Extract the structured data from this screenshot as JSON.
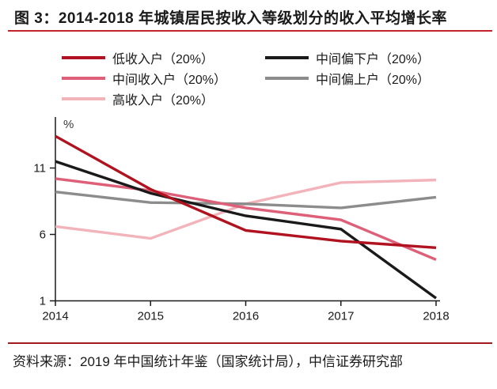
{
  "header": {
    "title": "图 3：2014-2018 年城镇居民按收入等级划分的收入平均增长率"
  },
  "footer": {
    "source": "资料来源：2019 年中国统计年鉴（国家统计局），中信证券研究部"
  },
  "colors": {
    "title_rule": "#c4232b",
    "footer_rule": "#a01a20",
    "axis": "#1a1a1a",
    "unit_label_text": "#3a3a3a"
  },
  "chart_data": {
    "type": "line",
    "title": "2014-2018 年城镇居民按收入等级划分的收入平均增长率",
    "xlabel": "",
    "ylabel": "%",
    "unit_label": "%",
    "x": [
      2014,
      2015,
      2016,
      2017,
      2018
    ],
    "x_labels": [
      "2014",
      "2015",
      "2016",
      "2017",
      "2018"
    ],
    "y_ticks": [
      1,
      6,
      11
    ],
    "ylim": [
      1,
      14.8
    ],
    "grid": false,
    "legend_position": "top",
    "series": [
      {
        "name": "低收入户（20%）",
        "color": "#b0121f",
        "legend_column": 0,
        "values": [
          13.4,
          9.4,
          6.3,
          5.5,
          5.0
        ]
      },
      {
        "name": "中间收入户（20%）",
        "color": "#dd6078",
        "legend_column": 0,
        "values": [
          10.2,
          9.3,
          8.0,
          7.1,
          4.1
        ]
      },
      {
        "name": "高收入户（20%）",
        "color": "#f2b3bb",
        "legend_column": 0,
        "values": [
          6.6,
          5.7,
          8.3,
          9.9,
          10.1
        ]
      },
      {
        "name": "中间偏下户（20%）",
        "color": "#1a1a1a",
        "legend_column": 1,
        "values": [
          11.5,
          9.1,
          7.4,
          6.4,
          1.2
        ]
      },
      {
        "name": "中间偏上户（20%）",
        "color": "#8c8c8c",
        "legend_column": 1,
        "values": [
          9.2,
          8.4,
          8.3,
          8.0,
          8.8
        ]
      }
    ],
    "z_order": [
      2,
      4,
      1,
      3,
      0
    ]
  }
}
